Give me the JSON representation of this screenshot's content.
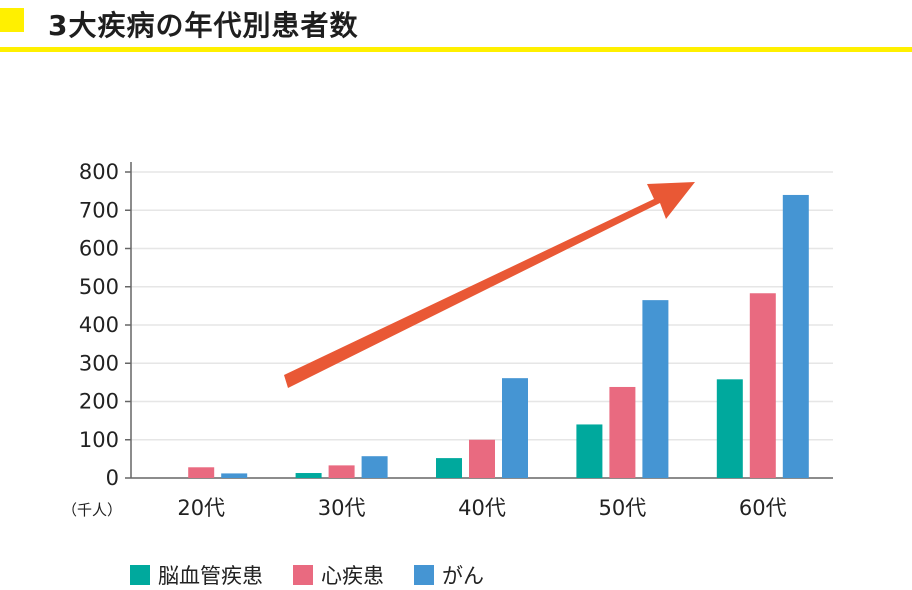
{
  "header": {
    "title": "3大疾病の年代別患者数"
  },
  "colors": {
    "accent": "#fff000",
    "arrow": "#e95835",
    "grid": "#e6e6e6",
    "axis": "#666666"
  },
  "chart_data": {
    "type": "bar",
    "title": "3大疾病の年代別患者数",
    "unit_label": "（千人）",
    "categories": [
      "20代",
      "30代",
      "40代",
      "50代",
      "60代"
    ],
    "ylim": [
      0,
      800
    ],
    "yticks": [
      0,
      100,
      200,
      300,
      400,
      500,
      600,
      700,
      800
    ],
    "grid": true,
    "legend_position": "bottom",
    "series": [
      {
        "name": "脳血管疾患",
        "color": "#00a99d",
        "values": [
          null,
          13,
          52,
          140,
          258
        ]
      },
      {
        "name": "心疾患",
        "color": "#e96a80",
        "values": [
          28,
          33,
          100,
          238,
          483
        ]
      },
      {
        "name": "がん",
        "color": "#4595d3",
        "values": [
          12,
          57,
          261,
          465,
          740
        ]
      }
    ],
    "annotation": {
      "type": "arrow",
      "description": "upward trend"
    }
  }
}
